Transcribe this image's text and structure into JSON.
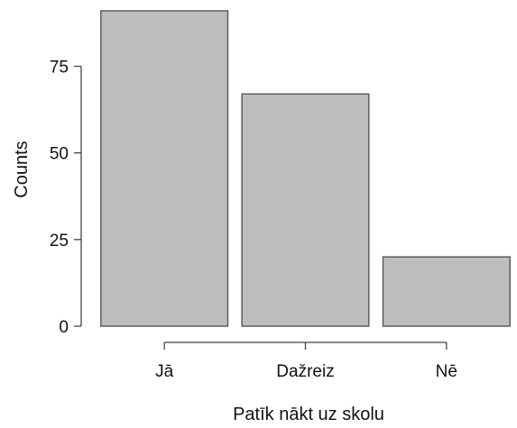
{
  "chart_data": {
    "type": "bar",
    "categories": [
      "Jā",
      "Dažreiz",
      "Nē"
    ],
    "values": [
      91,
      67,
      20
    ],
    "title": "",
    "xlabel": "Patīk nākt uz skolu",
    "ylabel": "Counts",
    "ylim": [
      0,
      91
    ],
    "yticks": [
      0,
      25,
      50,
      75
    ],
    "grid": false,
    "bar_color": "#bebebe",
    "bar_edge_color": "#555555",
    "axis_color": "#444444",
    "text_color": "#111111",
    "background": "#ffffff"
  }
}
